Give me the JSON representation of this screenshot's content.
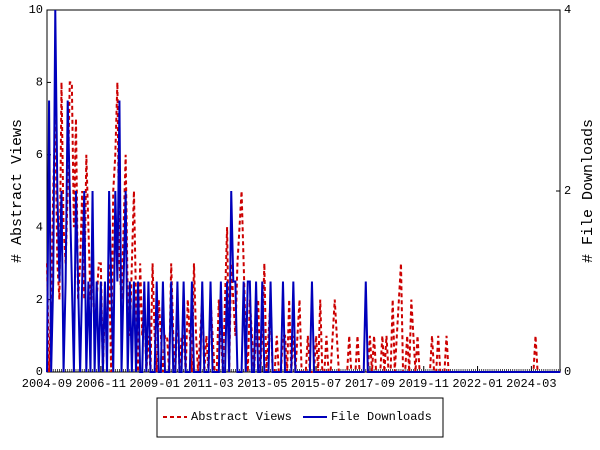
{
  "chart_data": {
    "type": "line",
    "x": [
      "2004-09",
      "2004-10",
      "2004-11",
      "2004-12",
      "2005-01",
      "2005-02",
      "2005-03",
      "2005-04",
      "2005-05",
      "2005-06",
      "2005-07",
      "2005-08",
      "2005-09",
      "2005-10",
      "2005-11",
      "2005-12",
      "2006-01",
      "2006-02",
      "2006-03",
      "2006-04",
      "2006-05",
      "2006-06",
      "2006-07",
      "2006-08",
      "2006-09",
      "2006-10",
      "2006-11",
      "2006-12",
      "2007-01",
      "2007-02",
      "2007-03",
      "2007-04",
      "2007-05",
      "2007-06",
      "2007-07",
      "2007-08",
      "2007-09",
      "2007-10",
      "2007-11",
      "2007-12",
      "2008-01",
      "2008-02",
      "2008-03",
      "2008-04",
      "2008-05",
      "2008-06",
      "2008-07",
      "2008-08",
      "2008-09",
      "2008-10",
      "2008-11",
      "2008-12",
      "2009-01",
      "2009-02",
      "2009-03",
      "2009-04",
      "2009-05",
      "2009-06",
      "2009-07",
      "2009-08",
      "2009-09",
      "2009-10",
      "2009-11",
      "2009-12",
      "2010-01",
      "2010-02",
      "2010-03",
      "2010-04",
      "2010-05",
      "2010-06",
      "2010-07",
      "2010-08",
      "2010-09",
      "2010-10",
      "2010-11",
      "2010-12",
      "2011-01",
      "2011-02",
      "2011-03",
      "2011-04",
      "2011-05",
      "2011-06",
      "2011-07",
      "2011-08",
      "2011-09",
      "2011-10",
      "2011-11",
      "2011-12",
      "2012-01",
      "2012-02",
      "2012-03",
      "2012-04",
      "2012-05",
      "2012-06",
      "2012-07",
      "2012-08",
      "2012-09",
      "2012-10",
      "2012-11",
      "2012-12",
      "2013-01",
      "2013-02",
      "2013-03",
      "2013-04",
      "2013-05",
      "2013-06",
      "2013-07",
      "2013-08",
      "2013-09",
      "2013-10",
      "2013-11",
      "2013-12",
      "2014-01",
      "2014-02",
      "2014-03",
      "2014-04",
      "2014-05",
      "2014-06",
      "2014-07",
      "2014-08",
      "2014-09",
      "2014-10",
      "2014-11",
      "2014-12",
      "2015-01",
      "2015-02",
      "2015-03",
      "2015-04",
      "2015-05",
      "2015-06",
      "2015-07",
      "2015-08",
      "2015-09",
      "2015-10",
      "2015-11",
      "2015-12",
      "2016-01",
      "2016-02",
      "2016-03",
      "2016-04",
      "2016-05",
      "2016-06",
      "2016-07",
      "2016-08",
      "2016-09",
      "2016-10",
      "2016-11",
      "2016-12",
      "2017-01",
      "2017-02",
      "2017-03",
      "2017-04",
      "2017-05",
      "2017-06",
      "2017-07",
      "2017-08",
      "2017-09",
      "2017-10",
      "2017-11",
      "2017-12",
      "2018-01",
      "2018-02",
      "2018-03",
      "2018-04",
      "2018-05",
      "2018-06",
      "2018-07",
      "2018-08",
      "2018-09",
      "2018-10",
      "2018-11",
      "2018-12",
      "2019-01",
      "2019-02",
      "2019-03",
      "2019-04",
      "2019-05",
      "2019-06",
      "2019-07",
      "2019-08",
      "2019-09",
      "2019-10",
      "2019-11",
      "2019-12",
      "2020-01",
      "2020-02",
      "2020-03",
      "2020-04",
      "2020-05",
      "2020-06",
      "2020-07",
      "2020-08",
      "2020-09",
      "2020-10",
      "2020-11",
      "2020-12",
      "2021-01",
      "2021-02",
      "2021-03",
      "2021-04",
      "2021-05",
      "2021-06",
      "2021-07",
      "2021-08",
      "2021-09",
      "2021-10",
      "2021-11",
      "2021-12",
      "2022-01",
      "2022-02",
      "2022-03",
      "2022-04",
      "2022-05",
      "2022-06",
      "2022-07",
      "2022-08",
      "2022-09",
      "2022-10",
      "2022-11",
      "2022-12",
      "2023-01",
      "2023-02",
      "2023-03",
      "2023-04",
      "2023-05",
      "2023-06",
      "2023-07",
      "2023-08",
      "2023-09",
      "2023-10",
      "2023-11",
      "2023-12",
      "2024-01",
      "2024-02",
      "2024-03",
      "2024-04",
      "2024-05",
      "2024-06",
      "2024-07",
      "2024-08",
      "2024-09",
      "2024-10",
      "2024-11",
      "2024-12",
      "2025-01",
      "2025-02",
      "2025-03",
      "2025-04",
      "2025-05"
    ],
    "xticks": [
      "2004-09",
      "2006-11",
      "2009-01",
      "2011-03",
      "2013-05",
      "2015-07",
      "2017-09",
      "2019-11",
      "2022-01",
      "2024-03"
    ],
    "ylabel": "# Abstract Views",
    "y2label": "# File Downloads",
    "ylim": [
      0,
      10
    ],
    "yticks": [
      0,
      2,
      4,
      6,
      8,
      10
    ],
    "y2lim": [
      0,
      4
    ],
    "y2ticks": [
      0,
      2,
      4
    ],
    "legend": "bottom",
    "series": [
      {
        "name": "Abstract Views",
        "color": "#cc0000",
        "dashed": true,
        "values": [
          3,
          0,
          2,
          5,
          7,
          3,
          2,
          8,
          4,
          3,
          5,
          8,
          8,
          4,
          7,
          2,
          3,
          5,
          2,
          6,
          4,
          2,
          3,
          1,
          2,
          3,
          3,
          0,
          2,
          1,
          3,
          0,
          5,
          6,
          8,
          3,
          2,
          4,
          6,
          2,
          1,
          3,
          5,
          2,
          0,
          3,
          1,
          2,
          0,
          1,
          0,
          3,
          1,
          0,
          2,
          1,
          0,
          1,
          1,
          0,
          3,
          1,
          0,
          2,
          0,
          1,
          1,
          0,
          2,
          1,
          0,
          3,
          1,
          0,
          1,
          2,
          0,
          1,
          0,
          2,
          1,
          0,
          0,
          2,
          1,
          0,
          2,
          4,
          0,
          3,
          2,
          1,
          3,
          4,
          5,
          3,
          1,
          0,
          2,
          1,
          0,
          1,
          2,
          0,
          1,
          3,
          0,
          1,
          2,
          0,
          0,
          1,
          0,
          0,
          1,
          1,
          0,
          2,
          0,
          1,
          0,
          1,
          2,
          0,
          0,
          0,
          1,
          0,
          0,
          0,
          1,
          0,
          2,
          0,
          0,
          1,
          0,
          0,
          1,
          2,
          1,
          0,
          0,
          0,
          0,
          0,
          1,
          0,
          0,
          0,
          1,
          0,
          0,
          0,
          0,
          0,
          1,
          0,
          1,
          0,
          0,
          0,
          1,
          0,
          1,
          0,
          0,
          2,
          0,
          1,
          2,
          3,
          0,
          0,
          1,
          0,
          2,
          1,
          0,
          1,
          0,
          0,
          0,
          0,
          0,
          0,
          1,
          0,
          0,
          1,
          0,
          0,
          0,
          1,
          0,
          0,
          0,
          0,
          0,
          0,
          0,
          0,
          0,
          0,
          0,
          0,
          0,
          0,
          0,
          0,
          0,
          0,
          0,
          0,
          0,
          0,
          0,
          0,
          0,
          0,
          0,
          0,
          0,
          0,
          0,
          0,
          0,
          0,
          0,
          0,
          0,
          0,
          0,
          0,
          0,
          0,
          1,
          0,
          0,
          0,
          0,
          0,
          0,
          0,
          0,
          0,
          0,
          0,
          0
        ]
      },
      {
        "name": "File Downloads",
        "color": "#0000bb",
        "axis": "y2",
        "values": [
          0,
          3,
          0,
          1,
          4,
          2,
          1,
          2,
          0,
          1,
          3,
          2,
          1,
          0,
          2,
          1,
          0,
          1,
          2,
          0,
          1,
          0,
          2,
          0,
          1,
          0,
          1,
          0,
          1,
          0,
          2,
          1,
          0,
          2,
          1,
          3,
          0,
          1,
          2,
          0,
          1,
          0,
          1,
          0,
          1,
          0,
          0,
          1,
          0,
          1,
          0,
          0,
          0,
          1,
          0,
          0,
          1,
          0,
          0,
          0,
          1,
          0,
          0,
          1,
          0,
          0,
          1,
          0,
          0,
          0,
          1,
          0,
          0,
          0,
          0,
          1,
          0,
          0,
          0,
          1,
          0,
          0,
          0,
          0,
          1,
          0,
          0,
          1,
          0,
          2,
          1,
          1,
          0,
          0,
          0,
          1,
          0,
          1,
          1,
          0,
          0,
          1,
          0,
          0,
          1,
          0,
          0,
          0,
          1,
          0,
          0,
          0,
          0,
          0,
          1,
          0,
          0,
          0,
          0,
          1,
          0,
          0,
          0,
          0,
          0,
          0,
          0,
          0,
          1,
          0,
          0,
          0,
          0,
          0,
          0,
          0,
          0,
          0,
          0,
          0,
          0,
          0,
          0,
          0,
          0,
          0,
          0,
          0,
          0,
          0,
          0,
          0,
          0,
          0,
          1,
          0,
          0,
          0,
          0,
          0,
          0,
          0,
          0,
          0,
          0,
          0,
          0,
          0,
          0,
          0,
          0,
          0,
          0,
          0,
          0,
          0,
          0,
          0,
          0,
          0,
          0,
          0,
          0,
          0,
          0,
          0,
          0,
          0,
          0,
          0,
          0,
          0,
          0,
          0,
          0,
          0,
          0,
          0,
          0,
          0,
          0,
          0,
          0,
          0,
          0,
          0,
          0,
          0,
          0,
          0,
          0,
          0,
          0,
          0,
          0,
          0,
          0,
          0,
          0,
          0,
          0,
          0,
          0,
          0,
          0,
          0,
          0,
          0,
          0,
          0,
          0,
          0,
          0,
          0,
          0,
          0,
          0,
          0,
          0,
          0,
          0,
          0,
          0,
          0,
          0,
          0,
          0,
          0,
          0
        ]
      }
    ]
  }
}
